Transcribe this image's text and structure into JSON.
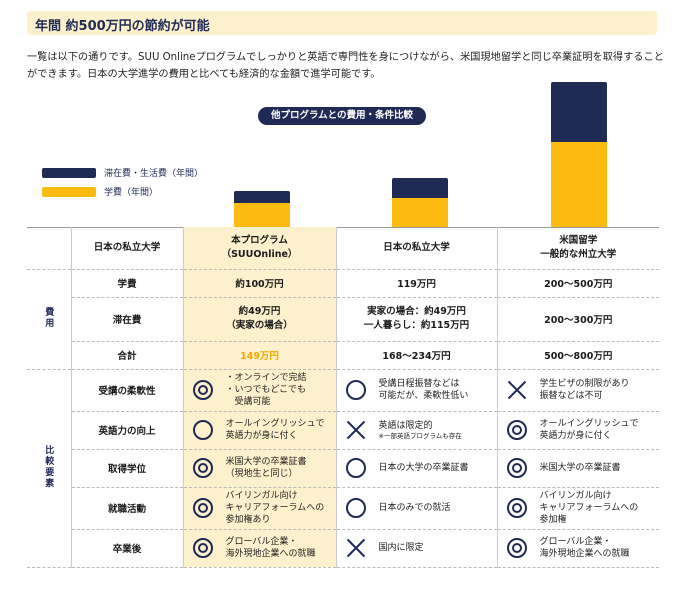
{
  "header": {
    "title": "年間 約500万円の節約が可能"
  },
  "intro": "一覧は以下の通りです。SUU Onlineプログラムでしっかりと英語で専門性を身につけながら、米国現地留学と同じ卒業証明を取得することができます。日本の大学進学の費用と比べても経済的な金額で進学可能です。",
  "chart": {
    "title": "他プログラムとの費用・条件比較",
    "legend": [
      {
        "label": "滞在費・生活費（年間）",
        "color": "#1f2a55"
      },
      {
        "label": "学費（年間）",
        "color": "#fdbb12"
      }
    ]
  },
  "chart_data": {
    "type": "bar",
    "stacked": true,
    "title": "他プログラムとの費用・条件比較",
    "categories": [
      "本プログラム（SUUOnline）",
      "日本の私立大学",
      "米国留学 一般的な州立大学"
    ],
    "series": [
      {
        "name": "学費（年間）",
        "values": [
          100,
          119,
          350
        ],
        "color": "#fdbb12"
      },
      {
        "name": "滞在費・生活費（年間）",
        "values": [
          49,
          82,
          250
        ],
        "color": "#1f2a55"
      }
    ],
    "units": "万円"
  },
  "table": {
    "columns": [
      "日本の私立大学",
      "本プログラム\n（SUUOnline）",
      "日本の私立大学",
      "米国留学\n一般的な州立大学"
    ],
    "cost_group": "費用",
    "compare_group": "比較要素",
    "cost_rows": [
      {
        "label": "学費",
        "values": [
          "約100万円",
          "119万円",
          "200〜500万円"
        ]
      },
      {
        "label": "滞在費",
        "values": [
          "約49万円\n（実家の場合）",
          "実家の場合：約49万円\n一人暮らし：約115万円",
          "200〜300万円"
        ]
      },
      {
        "label": "合計",
        "values": [
          "149万円",
          "168〜234万円",
          "500〜800万円"
        ]
      }
    ],
    "compare_rows": [
      {
        "label": "受講の柔軟性",
        "cells": [
          {
            "mark": "double-circle",
            "text": "・オンラインで完結\n・いつでもどこでも\n　受講可能"
          },
          {
            "mark": "circle",
            "text": "受講日程振替などは\n可能だが、柔軟性低い"
          },
          {
            "mark": "cross",
            "text": "学生ビザの制限があり\n振替などは不可"
          }
        ]
      },
      {
        "label": "英語力の向上",
        "cells": [
          {
            "mark": "circle",
            "text": "オールイングリッシュで\n英語力が身に付く"
          },
          {
            "mark": "cross",
            "text": "英語は限定的",
            "note": "※一部英語プログラムも存在"
          },
          {
            "mark": "double-circle",
            "text": "オールイングリッシュで\n英語力が身に付く"
          }
        ]
      },
      {
        "label": "取得学位",
        "cells": [
          {
            "mark": "double-circle",
            "text": "米国大学の卒業証書\n（現地生と同じ）"
          },
          {
            "mark": "circle",
            "text": "日本の大学の卒業証書"
          },
          {
            "mark": "double-circle",
            "text": "米国大学の卒業証書"
          }
        ]
      },
      {
        "label": "就職活動",
        "cells": [
          {
            "mark": "double-circle",
            "text": "バイリンガル向け\nキャリアフォーラムへの\n参加権あり"
          },
          {
            "mark": "circle",
            "text": "日本のみでの就活"
          },
          {
            "mark": "double-circle",
            "text": "バイリンガル向け\nキャリアフォーラムへの\n参加権"
          }
        ]
      },
      {
        "label": "卒業後",
        "cells": [
          {
            "mark": "double-circle",
            "text": "グローバル企業・\n海外現地企業への就職"
          },
          {
            "mark": "cross",
            "text": "国内に限定"
          },
          {
            "mark": "double-circle",
            "text": "グローバル企業・\n海外現地企業への就職"
          }
        ]
      }
    ]
  }
}
